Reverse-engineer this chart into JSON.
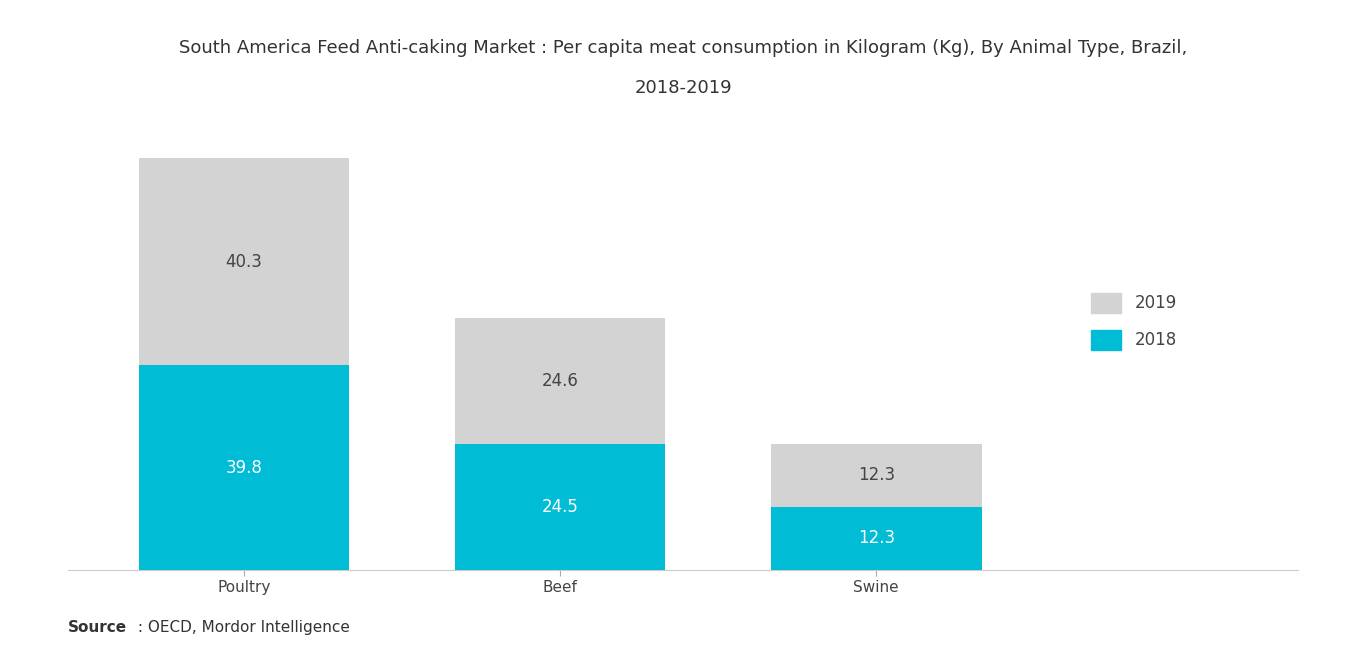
{
  "title_line1": "South America Feed Anti-caking Market : Per capita meat consumption in Kilogram (Kg), By Animal Type, Brazil,",
  "title_line2": "2018-2019",
  "categories": [
    "Poultry",
    "Beef",
    "Swine"
  ],
  "values_2018": [
    39.8,
    24.5,
    12.3
  ],
  "values_2019": [
    40.3,
    24.6,
    12.3
  ],
  "color_2018": "#00BCD4",
  "color_2019": "#D3D3D3",
  "bar_width": 0.18,
  "source_bold": "Source",
  "source_rest": " : OECD, Mordor Intelligence",
  "legend_labels": [
    "2019",
    "2018"
  ],
  "background_color": "#FFFFFF",
  "title_fontsize": 13,
  "label_fontsize": 12,
  "tick_fontsize": 11,
  "source_fontsize": 11,
  "ylim": [
    0,
    88
  ],
  "bar_positions": [
    0.15,
    0.42,
    0.69
  ],
  "xlim": [
    0.0,
    1.05
  ]
}
